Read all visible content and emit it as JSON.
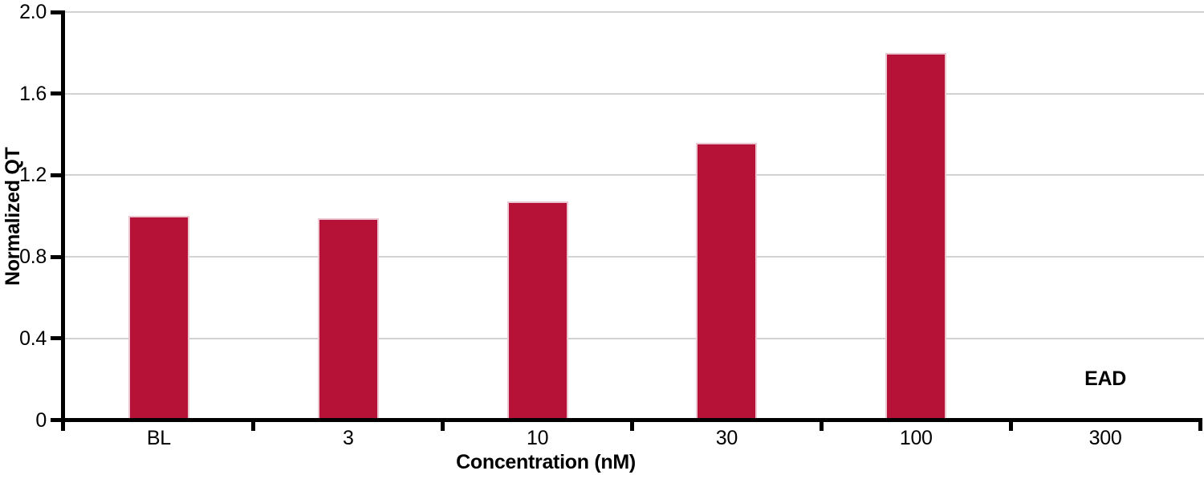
{
  "chart_data": {
    "type": "bar",
    "title": "",
    "xlabel": "Concentration (nM)",
    "ylabel": "Normalized QT",
    "categories": [
      "BL",
      "3",
      "10",
      "30",
      "100",
      "300"
    ],
    "values": [
      1.0,
      0.99,
      1.07,
      1.36,
      1.8,
      null
    ],
    "ylim": [
      0,
      2.0
    ],
    "yticks": [
      0,
      0.4,
      0.8,
      1.2,
      1.6,
      2.0
    ],
    "ytick_labels": [
      "0",
      "0.4",
      "0.8",
      "1.2",
      "1.6",
      "2.0"
    ],
    "grid": true,
    "legend": false,
    "bar_color": "#B61137",
    "bar_edge_color": "#ECC6D0",
    "gridline_color": "#D2D2D2",
    "axis_color": "#000000",
    "annotations": [
      {
        "text": "EAD",
        "category": "300",
        "y": 0.2,
        "bold": true
      }
    ]
  }
}
